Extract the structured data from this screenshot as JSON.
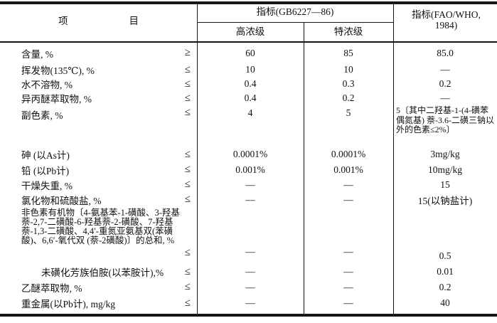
{
  "table": {
    "header": {
      "item_left": "项",
      "item_right": "目",
      "gb_group": "指标(GB6227—86)",
      "gb_sub_high": "高浓级",
      "gb_sub_extra": "特浓级",
      "fao_line1": "指标(FAO/WHO,",
      "fao_line2": "1984)"
    },
    "rows": [
      {
        "label": "含量, %",
        "op": "≥",
        "high": "60",
        "extra": "85",
        "fao": "85.0"
      },
      {
        "label": "挥发物(135℃), %",
        "op": "≤",
        "high": "10",
        "extra": "10",
        "fao": "—"
      },
      {
        "label": "水不溶物, %",
        "op": "≤",
        "high": "0.4",
        "extra": "0.3",
        "fao": "0.2"
      },
      {
        "label": "异丙醚萃取物, %",
        "op": "≤",
        "high": "0.4",
        "extra": "0.2",
        "fao": "—"
      },
      {
        "label": "副色素, %",
        "op": "≤",
        "high": "4",
        "extra": "5",
        "fao": "5〔其中二羟基-1-(4-磺苯偶氮基) 萘-3.6-二磺三钠以外的色素≤2%〕"
      },
      {
        "label": "砷 (以As计)",
        "op": "≤",
        "high": "0.0001%",
        "extra": "0.0001%",
        "fao": "3mg/kg"
      },
      {
        "label": "铅 (以Pb计)",
        "op": "≤",
        "high": "0.001%",
        "extra": "0.001%",
        "fao": "10mg/kg"
      },
      {
        "label": "干燥失重, %",
        "op": "≤",
        "high": "—",
        "extra": "—",
        "fao": "15"
      },
      {
        "label": "氯化物和硫酸盐, %",
        "op": "≤",
        "high": "—",
        "extra": "—",
        "fao": "15(以钠盐计)"
      },
      {
        "label": "非色素有机物〔4-氨基苯-1-磺酸、3-羟基萘-2,7-二磺酸-6-羟基萘-2-磺酸、7-羟基萘-1,3-二磺酸、4,4′-重氮亚氨基双(苯磺酸)、6,6′-氧代双 (萘-2磺酸)〕的总和, %",
        "op": "≤",
        "high": "—",
        "extra": "—",
        "fao": "0.5"
      },
      {
        "label": "未磺化芳族伯胺(以苯胺计),%",
        "op": "≤",
        "high": "—",
        "extra": "—",
        "fao": "0.01"
      },
      {
        "label": "乙醚萃取物, %",
        "op": "≤",
        "high": "—",
        "extra": "—",
        "fao": "0.2"
      },
      {
        "label": "重金属(以Pb计), mg/kg",
        "op": "≤",
        "high": "—",
        "extra": "—",
        "fao": "40"
      }
    ]
  }
}
